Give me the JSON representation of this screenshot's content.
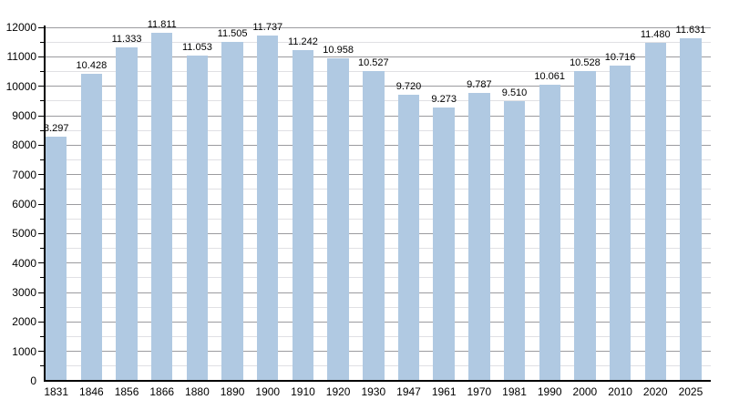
{
  "chart": {
    "background_color": "#ffffff",
    "bar_color": "#b0c9e2",
    "major_grid_color": "#9b9b9f",
    "minor_grid_color": "#e0e0e4",
    "axis_color": "#000000",
    "text_color": "#000000"
  },
  "chart_data": {
    "type": "bar",
    "title": "",
    "xlabel": "",
    "ylabel": "",
    "categories": [
      "1831",
      "1846",
      "1856",
      "1866",
      "1880",
      "1890",
      "1900",
      "1910",
      "1920",
      "1930",
      "1947",
      "1961",
      "1970",
      "1981",
      "1990",
      "2000",
      "2010",
      "2020",
      "2025"
    ],
    "values": [
      8297,
      10428,
      11333,
      11811,
      11053,
      11505,
      11737,
      11242,
      10958,
      10527,
      9720,
      9273,
      9787,
      9510,
      10061,
      10528,
      10716,
      11480,
      11631
    ],
    "value_labels": [
      "8.297",
      "10.428",
      "11.333",
      "11.811",
      "11.053",
      "11.505",
      "11.737",
      "11.242",
      "10.958",
      "10.527",
      "9.720",
      "9.273",
      "9.787",
      "9.510",
      "10.061",
      "10.528",
      "10.716",
      "11.480",
      "11.631"
    ],
    "ylim": [
      0,
      12000
    ],
    "y_major_step": 1000,
    "y_minor_step": 500,
    "y_tick_labels": [
      "0",
      "1000",
      "2000",
      "3000",
      "4000",
      "5000",
      "6000",
      "7000",
      "8000",
      "9000",
      "10000",
      "11000",
      "12000"
    ],
    "grid": true,
    "legend": null
  }
}
